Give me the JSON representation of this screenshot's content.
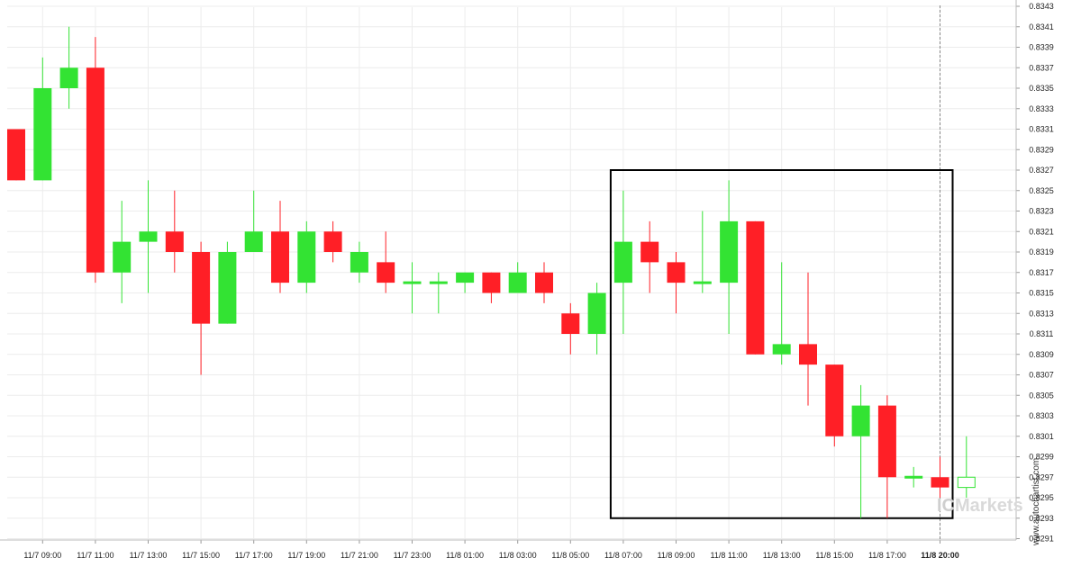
{
  "chart_data": {
    "type": "candlestick",
    "ylim": [
      0.829,
      0.8343
    ],
    "y_ticks": [
      "0.8343",
      "0.8341",
      "0.8339",
      "0.8337",
      "0.8335",
      "0.8333",
      "0.8331",
      "0.8329",
      "0.8327",
      "0.8325",
      "0.8323",
      "0.8321",
      "0.8319",
      "0.8317",
      "0.8315",
      "0.8313",
      "0.8311",
      "0.8309",
      "0.8307",
      "0.8305",
      "0.8303",
      "0.8301",
      "0.8299",
      "0.8297",
      "0.8295",
      "0.8293",
      "0.8291"
    ],
    "x_ticks": [
      {
        "label": "11/7 09:00",
        "index": 1,
        "bold": false
      },
      {
        "label": "11/7 11:00",
        "index": 3,
        "bold": false
      },
      {
        "label": "11/7 13:00",
        "index": 5,
        "bold": false
      },
      {
        "label": "11/7 15:00",
        "index": 7,
        "bold": false
      },
      {
        "label": "11/7 17:00",
        "index": 9,
        "bold": false
      },
      {
        "label": "11/7 19:00",
        "index": 11,
        "bold": false
      },
      {
        "label": "11/7 21:00",
        "index": 13,
        "bold": false
      },
      {
        "label": "11/7 23:00",
        "index": 15,
        "bold": false
      },
      {
        "label": "11/8 01:00",
        "index": 17,
        "bold": false
      },
      {
        "label": "11/8 03:00",
        "index": 19,
        "bold": false
      },
      {
        "label": "11/8 05:00",
        "index": 21,
        "bold": false
      },
      {
        "label": "11/8 07:00",
        "index": 23,
        "bold": false
      },
      {
        "label": "11/8 09:00",
        "index": 25,
        "bold": false
      },
      {
        "label": "11/8 11:00",
        "index": 27,
        "bold": false
      },
      {
        "label": "11/8 13:00",
        "index": 29,
        "bold": false
      },
      {
        "label": "11/8 15:00",
        "index": 31,
        "bold": false
      },
      {
        "label": "11/8 17:00",
        "index": 33,
        "bold": false
      },
      {
        "label": "11/8 20:00",
        "index": 35,
        "bold": true
      }
    ],
    "candles": [
      {
        "o": 0.8331,
        "h": 0.8331,
        "l": 0.8326,
        "c": 0.8326
      },
      {
        "o": 0.8326,
        "h": 0.8338,
        "l": 0.8326,
        "c": 0.8335
      },
      {
        "o": 0.8335,
        "h": 0.8341,
        "l": 0.8333,
        "c": 0.8337
      },
      {
        "o": 0.8337,
        "h": 0.834,
        "l": 0.8316,
        "c": 0.8317
      },
      {
        "o": 0.8317,
        "h": 0.8324,
        "l": 0.8314,
        "c": 0.832
      },
      {
        "o": 0.832,
        "h": 0.8326,
        "l": 0.8315,
        "c": 0.8321
      },
      {
        "o": 0.8321,
        "h": 0.8325,
        "l": 0.8317,
        "c": 0.8319
      },
      {
        "o": 0.8319,
        "h": 0.832,
        "l": 0.8307,
        "c": 0.8312
      },
      {
        "o": 0.8312,
        "h": 0.832,
        "l": 0.8312,
        "c": 0.8319
      },
      {
        "o": 0.8319,
        "h": 0.8325,
        "l": 0.8319,
        "c": 0.8321
      },
      {
        "o": 0.8321,
        "h": 0.8324,
        "l": 0.8315,
        "c": 0.8316
      },
      {
        "o": 0.8316,
        "h": 0.8322,
        "l": 0.8315,
        "c": 0.8321
      },
      {
        "o": 0.8321,
        "h": 0.8322,
        "l": 0.8318,
        "c": 0.8319
      },
      {
        "o": 0.8317,
        "h": 0.832,
        "l": 0.8316,
        "c": 0.8319
      },
      {
        "o": 0.8318,
        "h": 0.8321,
        "l": 0.8315,
        "c": 0.8316
      },
      {
        "o": 0.8316,
        "h": 0.8318,
        "l": 0.8313,
        "c": 0.8316
      },
      {
        "o": 0.8316,
        "h": 0.8317,
        "l": 0.8313,
        "c": 0.8316
      },
      {
        "o": 0.8316,
        "h": 0.8317,
        "l": 0.8315,
        "c": 0.8317
      },
      {
        "o": 0.8317,
        "h": 0.8317,
        "l": 0.8314,
        "c": 0.8315
      },
      {
        "o": 0.8315,
        "h": 0.8318,
        "l": 0.8315,
        "c": 0.8317
      },
      {
        "o": 0.8317,
        "h": 0.8318,
        "l": 0.8314,
        "c": 0.8315
      },
      {
        "o": 0.8313,
        "h": 0.8314,
        "l": 0.8309,
        "c": 0.8311
      },
      {
        "o": 0.8311,
        "h": 0.8316,
        "l": 0.8309,
        "c": 0.8315
      },
      {
        "o": 0.8316,
        "h": 0.8325,
        "l": 0.8311,
        "c": 0.832
      },
      {
        "o": 0.832,
        "h": 0.8322,
        "l": 0.8315,
        "c": 0.8318
      },
      {
        "o": 0.8318,
        "h": 0.8319,
        "l": 0.8313,
        "c": 0.8316
      },
      {
        "o": 0.8316,
        "h": 0.8323,
        "l": 0.8315,
        "c": 0.8316
      },
      {
        "o": 0.8316,
        "h": 0.8326,
        "l": 0.8311,
        "c": 0.8322
      },
      {
        "o": 0.8322,
        "h": 0.8322,
        "l": 0.8309,
        "c": 0.8309
      },
      {
        "o": 0.8309,
        "h": 0.8318,
        "l": 0.8308,
        "c": 0.831
      },
      {
        "o": 0.831,
        "h": 0.8317,
        "l": 0.8304,
        "c": 0.8308
      },
      {
        "o": 0.8308,
        "h": 0.8308,
        "l": 0.83,
        "c": 0.8301
      },
      {
        "o": 0.8301,
        "h": 0.8306,
        "l": 0.8293,
        "c": 0.8304
      },
      {
        "o": 0.8304,
        "h": 0.8305,
        "l": 0.8293,
        "c": 0.8297
      },
      {
        "o": 0.8297,
        "h": 0.8298,
        "l": 0.8296,
        "c": 0.8297
      },
      {
        "o": 0.8297,
        "h": 0.8299,
        "l": 0.8295,
        "c": 0.8296
      },
      {
        "o": 0.8296,
        "h": 0.8301,
        "l": 0.8295,
        "c": 0.8297,
        "hollow": true
      }
    ],
    "highlight_box": {
      "from_index": 23,
      "to_index": 35,
      "y_low": 0.8293,
      "y_high": 0.8327
    },
    "current_time_marker_index": 35,
    "grid": true,
    "colors": {
      "up": "#33e333",
      "down": "#ff1f26",
      "grid": "#ececec",
      "box": "#000000",
      "marker": "#888888"
    }
  },
  "watermark": {
    "side_text": "www.autochartist.com",
    "brand_prefix": "IC",
    "brand_text": "Markets"
  }
}
